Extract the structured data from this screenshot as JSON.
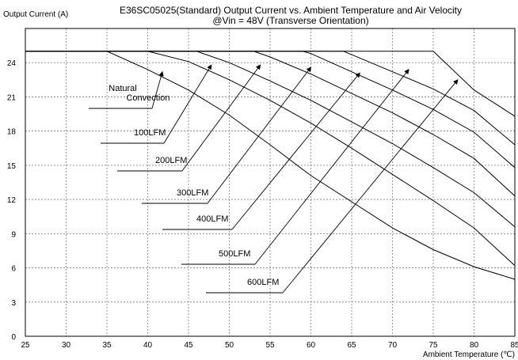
{
  "chart_data": {
    "type": "line",
    "title": "E36SC05025(Standard)  Output Current vs. Ambient Temperature and Air Velocity",
    "subtitle": "@Vin = 48V (Transverse Orientation)",
    "xlabel": "Ambient Temperature (℃)",
    "ylabel": "Output Current (A)",
    "xlim": [
      25,
      85
    ],
    "ylim": [
      0,
      27
    ],
    "xticks": [
      25,
      30,
      35,
      40,
      45,
      50,
      55,
      60,
      65,
      70,
      75,
      80,
      85
    ],
    "yticks": [
      0,
      3,
      6,
      9,
      12,
      15,
      18,
      21,
      24
    ],
    "grid": true,
    "legend": "annotations",
    "series": [
      {
        "name": "Natural\nConvection",
        "points": [
          [
            25,
            25
          ],
          [
            35,
            25
          ],
          [
            40,
            23.4
          ],
          [
            45,
            21.6
          ],
          [
            50,
            19.4
          ],
          [
            55,
            16.8
          ],
          [
            60,
            14.1
          ],
          [
            65,
            11.8
          ],
          [
            70,
            9.5
          ],
          [
            75,
            7.6
          ],
          [
            80,
            6.1
          ],
          [
            85,
            5.0
          ]
        ]
      },
      {
        "name": "100LFM",
        "points": [
          [
            25,
            25
          ],
          [
            40,
            25
          ],
          [
            45,
            24.1
          ],
          [
            50,
            22.5
          ],
          [
            55,
            20.7
          ],
          [
            60,
            18.7
          ],
          [
            65,
            16.5
          ],
          [
            70,
            14.2
          ],
          [
            75,
            11.9
          ],
          [
            80,
            9.5
          ],
          [
            85,
            6.2
          ]
        ]
      },
      {
        "name": "200LFM",
        "points": [
          [
            25,
            25
          ],
          [
            46,
            25
          ],
          [
            50,
            24.0
          ],
          [
            55,
            22.4
          ],
          [
            60,
            20.7
          ],
          [
            65,
            18.8
          ],
          [
            70,
            16.9
          ],
          [
            75,
            14.8
          ],
          [
            80,
            12.6
          ],
          [
            85,
            9.6
          ]
        ]
      },
      {
        "name": "300LFM",
        "points": [
          [
            25,
            25
          ],
          [
            53,
            25
          ],
          [
            55,
            24.5
          ],
          [
            60,
            23.0
          ],
          [
            65,
            21.3
          ],
          [
            70,
            19.6
          ],
          [
            75,
            17.7
          ],
          [
            80,
            15.6
          ],
          [
            85,
            12.3
          ]
        ]
      },
      {
        "name": "400LFM",
        "points": [
          [
            25,
            25
          ],
          [
            59,
            25
          ],
          [
            60,
            24.8
          ],
          [
            65,
            23.2
          ],
          [
            70,
            21.6
          ],
          [
            75,
            19.9
          ],
          [
            80,
            17.9
          ],
          [
            85,
            14.8
          ]
        ]
      },
      {
        "name": "500LFM",
        "points": [
          [
            25,
            25
          ],
          [
            64,
            25
          ],
          [
            65,
            24.7
          ],
          [
            70,
            23.2
          ],
          [
            75,
            21.7
          ],
          [
            80,
            19.8
          ],
          [
            85,
            16.8
          ]
        ]
      },
      {
        "name": "600LFM",
        "points": [
          [
            25,
            25
          ],
          [
            75,
            25
          ],
          [
            80,
            21.6
          ],
          [
            85,
            19.3
          ]
        ]
      }
    ],
    "annotations": [
      {
        "label": "Natural\nConvection",
        "anchor": [
          41.8,
          23.2
        ]
      },
      {
        "label": "100LFM",
        "anchor": [
          47.8,
          23.8
        ]
      },
      {
        "label": "200LFM",
        "anchor": [
          53.8,
          23.8
        ]
      },
      {
        "label": "300LFM",
        "anchor": [
          60.0,
          23.6
        ]
      },
      {
        "label": "400LFM",
        "anchor": [
          66.0,
          23.1
        ]
      },
      {
        "label": "500LFM",
        "anchor": [
          72.0,
          23.4
        ]
      },
      {
        "label": "600LFM",
        "anchor": [
          78.0,
          22.5
        ]
      }
    ]
  }
}
